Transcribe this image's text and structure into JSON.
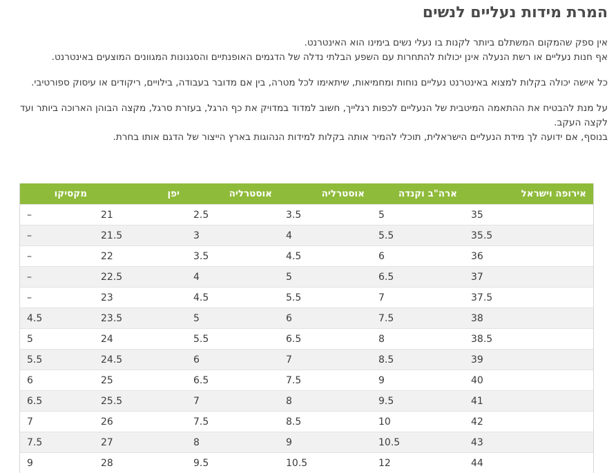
{
  "article": {
    "title": "המרת מידות נעליים לנשים",
    "paragraphs": [
      [
        "אין ספק שהמקום המשתלם ביותר לקנות בו נעלי נשים בימינו הוא האינטרנט.",
        "אף חנות נעליים או רשת הנעלה אינן יכולות להתחרות עם השפע הבלתי נדלה של הדגמים האופנתיים והסגנונות המגוונים המוצעים באינטרנט."
      ],
      [
        "כל אישה יכולה בקלות למצוא באינטרנט נעליים נוחות ומחמיאות, שיתאימו לכל מטרה, בין אם מדובר בעבודה, בילויים, ריקודים או עיסוק ספורטיבי."
      ],
      [
        "על מנת להבטיח את ההתאמה המיטבית של הנעליים לכפות רגלייך, חשוב למדוד במדויק את כף הרגל, בעזרת סרגל, מקצה הבוהן הארוכה ביותר ועד לקצה העקב.",
        "בנוסף, אם ידועה לך מידת הנעליים הישראלית, תוכלי להמיר אותה בקלות למידות הנהוגות בארץ הייצור של הדגם אותו בחרת."
      ]
    ]
  },
  "size_table": {
    "header_color": "#8fbb3a",
    "stripe_color": "#f1f1f1",
    "headers": [
      "אירופה וישראל",
      "ארה\"ב וקנדה",
      "אוסטרליה",
      "אוסטרליה",
      "יפן",
      "מקסיקו"
    ],
    "rows": [
      [
        "35",
        "5",
        "3.5",
        "2.5",
        "21",
        "–"
      ],
      [
        "35.5",
        "5.5",
        "4",
        "3",
        "21.5",
        "–"
      ],
      [
        "36",
        "6",
        "4.5",
        "3.5",
        "22",
        "–"
      ],
      [
        "37",
        "6.5",
        "5",
        "4",
        "22.5",
        "–"
      ],
      [
        "37.5",
        "7",
        "5.5",
        "4.5",
        "23",
        "–"
      ],
      [
        "38",
        "7.5",
        "6",
        "5",
        "23.5",
        "4.5"
      ],
      [
        "38.5",
        "8",
        "6.5",
        "5.5",
        "24",
        "5"
      ],
      [
        "39",
        "8.5",
        "7",
        "6",
        "24.5",
        "5.5"
      ],
      [
        "40",
        "9",
        "7.5",
        "6.5",
        "25",
        "6"
      ],
      [
        "41",
        "9.5",
        "8",
        "7",
        "25.5",
        "6.5"
      ],
      [
        "42",
        "10",
        "8.5",
        "7.5",
        "26",
        "7"
      ],
      [
        "43",
        "10.5",
        "9",
        "8",
        "27",
        "7.5"
      ],
      [
        "44",
        "12",
        "10.5",
        "9.5",
        "28",
        "9"
      ]
    ]
  }
}
